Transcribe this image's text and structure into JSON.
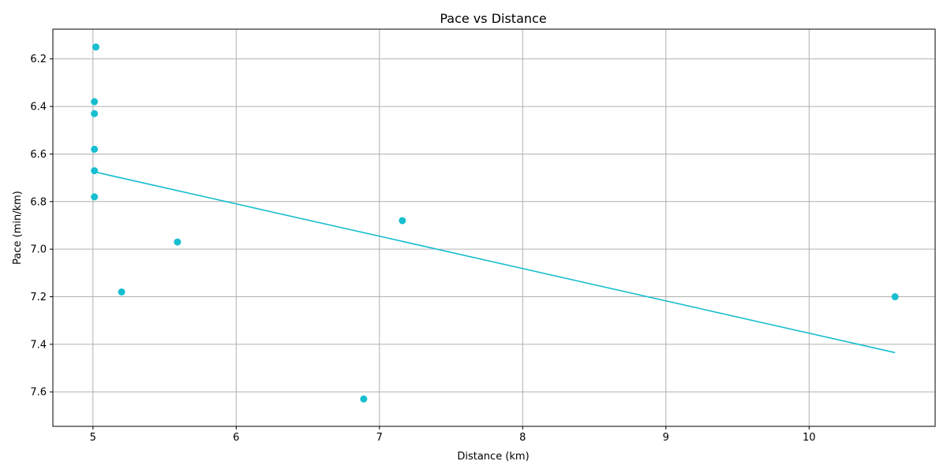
{
  "chart_data": {
    "type": "scatter",
    "title": "Pace vs Distance",
    "xlabel": "Distance (km)",
    "ylabel": "Pace (min/km)",
    "xlim": [
      4.72,
      10.88
    ],
    "ylim": [
      7.745,
      6.075
    ],
    "y_inverted": true,
    "grid": true,
    "x_ticks": [
      5,
      6,
      7,
      8,
      9,
      10
    ],
    "y_ticks": [
      6.2,
      6.4,
      6.6,
      6.8,
      7.0,
      7.2,
      7.4,
      7.6
    ],
    "x_tick_labels": [
      "5",
      "6",
      "7",
      "8",
      "9",
      "10"
    ],
    "y_tick_labels": [
      "6.2",
      "6.4",
      "6.6",
      "6.8",
      "7.0",
      "7.2",
      "7.4",
      "7.6"
    ],
    "points": [
      {
        "x": 5.02,
        "y": 6.15
      },
      {
        "x": 5.01,
        "y": 6.38
      },
      {
        "x": 5.01,
        "y": 6.43
      },
      {
        "x": 5.01,
        "y": 6.58
      },
      {
        "x": 5.01,
        "y": 6.67
      },
      {
        "x": 5.01,
        "y": 6.78
      },
      {
        "x": 5.2,
        "y": 7.18
      },
      {
        "x": 5.59,
        "y": 6.97
      },
      {
        "x": 6.89,
        "y": 7.63
      },
      {
        "x": 7.16,
        "y": 6.88
      },
      {
        "x": 10.6,
        "y": 7.2
      }
    ],
    "trend_line": {
      "x": [
        5.01,
        10.6
      ],
      "y": [
        6.675,
        7.435
      ]
    },
    "colors": {
      "points": "#17becf",
      "trend_line": "#17becf",
      "grid": "#b0b0b0",
      "axes": "#000000"
    }
  }
}
